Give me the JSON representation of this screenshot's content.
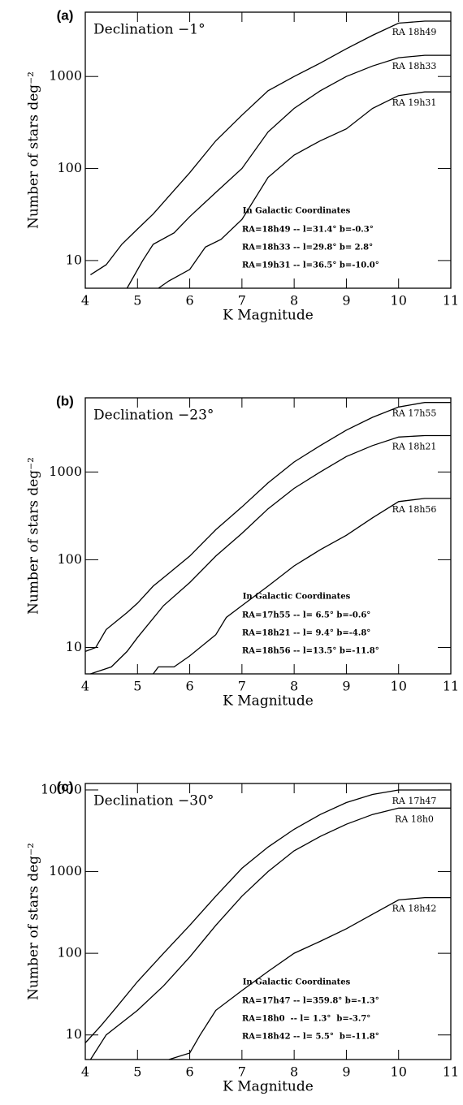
{
  "chart_data": [
    {
      "type": "line",
      "panel_label": "(a)",
      "title": "Declination −1°",
      "xlabel": "K Magnitude",
      "ylabel": "Number of stars deg⁻²",
      "xlim": [
        4,
        11
      ],
      "ylim": [
        5,
        5000
      ],
      "log_y": true,
      "xticks": [
        4,
        5,
        6,
        7,
        8,
        9,
        10,
        11
      ],
      "yticks": [
        10,
        100,
        1000
      ],
      "annotation_title": "In Galactic Coordinates",
      "annotations": [
        "RA=18h49 -- l=31.4° b=-0.3°",
        "RA=18h33 -- l=29.8° b= 2.8°",
        "RA=19h31 -- l=36.5° b=-10.0°"
      ],
      "series": [
        {
          "name": "RA 18h49",
          "color": "#000000",
          "x": [
            4.1,
            4.4,
            4.7,
            5,
            5.3,
            5.6,
            6,
            6.5,
            7,
            7.5,
            8,
            8.5,
            9,
            9.5,
            10,
            10.5,
            11
          ],
          "values": [
            7,
            9,
            15,
            22,
            32,
            50,
            90,
            200,
            380,
            700,
            1000,
            1400,
            2000,
            2800,
            3800,
            4000,
            4000
          ]
        },
        {
          "name": "RA 18h33",
          "color": "#000000",
          "x": [
            4.8,
            5.1,
            5.3,
            5.7,
            6,
            6.5,
            7,
            7.5,
            8,
            8.5,
            9,
            9.5,
            10,
            10.5,
            11
          ],
          "values": [
            5,
            10,
            15,
            20,
            30,
            55,
            100,
            250,
            450,
            700,
            1000,
            1300,
            1600,
            1700,
            1700
          ]
        },
        {
          "name": "RA 19h31",
          "color": "#000000",
          "x": [
            5.4,
            5.6,
            6,
            6.3,
            6.6,
            7,
            7.5,
            8,
            8.5,
            9,
            9.5,
            10,
            10.5,
            11
          ],
          "values": [
            5,
            6,
            8,
            14,
            17,
            28,
            80,
            140,
            200,
            270,
            450,
            620,
            680,
            680
          ]
        }
      ]
    },
    {
      "type": "line",
      "panel_label": "(b)",
      "title": "Declination −23°",
      "xlabel": "K Magnitude",
      "ylabel": "Number of stars deg⁻²",
      "xlim": [
        4,
        11
      ],
      "ylim": [
        5,
        7000
      ],
      "log_y": true,
      "xticks": [
        4,
        5,
        6,
        7,
        8,
        9,
        10,
        11
      ],
      "yticks": [
        10,
        100,
        1000
      ],
      "annotation_title": "In Galactic Coordinates",
      "annotations": [
        "RA=17h55 -- l= 6.5° b=-0.6°",
        "RA=18h21 -- l= 9.4° b=-4.8°",
        "RA=18h56 -- l=13.5° b=-11.8°"
      ],
      "series": [
        {
          "name": "RA 17h55",
          "color": "#000000",
          "x": [
            4,
            4.2,
            4.4,
            4.8,
            5,
            5.3,
            5.6,
            6,
            6.5,
            7,
            7.5,
            8,
            8.5,
            9,
            9.5,
            10,
            10.5,
            11
          ],
          "values": [
            9,
            10,
            16,
            25,
            32,
            50,
            70,
            110,
            220,
            400,
            750,
            1300,
            2000,
            3000,
            4200,
            5500,
            6200,
            6200
          ]
        },
        {
          "name": "RA 18h21",
          "color": "#000000",
          "x": [
            4.1,
            4.5,
            4.8,
            5,
            5.5,
            6,
            6.5,
            7,
            7.5,
            8,
            8.5,
            9,
            9.5,
            10,
            10.5,
            11
          ],
          "values": [
            5,
            6,
            9,
            13,
            30,
            55,
            110,
            200,
            380,
            650,
            1000,
            1500,
            2000,
            2500,
            2600,
            2600
          ]
        },
        {
          "name": "RA 18h56",
          "color": "#000000",
          "x": [
            5.3,
            5.4,
            5.7,
            6,
            6.5,
            6.7,
            7,
            7.5,
            8,
            8.5,
            9,
            9.5,
            10,
            10.5,
            11
          ],
          "values": [
            5,
            6,
            6,
            8,
            14,
            22,
            30,
            50,
            85,
            130,
            190,
            300,
            460,
            500,
            500
          ]
        }
      ]
    },
    {
      "type": "line",
      "panel_label": "(c)",
      "title": "Declination −30°",
      "xlabel": "K Magnitude",
      "ylabel": "Number of stars deg⁻²",
      "xlim": [
        4,
        11
      ],
      "ylim": [
        5,
        12000
      ],
      "log_y": true,
      "xticks": [
        4,
        5,
        6,
        7,
        8,
        9,
        10,
        11
      ],
      "yticks": [
        10,
        100,
        1000,
        10000
      ],
      "annotation_title": "In Galactic Coordinates",
      "annotations": [
        "RA=17h47 -- l=359.8° b=-1.3°",
        "RA=18h0  -- l= 1.3°  b=-3.7°",
        "RA=18h42 -- l= 5.5°  b=-11.8°"
      ],
      "series": [
        {
          "name": "RA 17h47",
          "color": "#000000",
          "x": [
            4,
            4.3,
            4.6,
            5,
            5.5,
            6,
            6.5,
            7,
            7.5,
            8,
            8.5,
            9,
            9.5,
            10,
            10.5,
            11
          ],
          "values": [
            8,
            13,
            22,
            45,
            100,
            220,
            500,
            1100,
            2000,
            3300,
            5000,
            7000,
            8800,
            10000,
            10000,
            10000
          ]
        },
        {
          "name": "RA 18h0",
          "color": "#000000",
          "x": [
            4.1,
            4.4,
            5,
            5.5,
            6,
            6.5,
            7,
            7.5,
            8,
            8.5,
            9,
            9.5,
            10,
            10.5,
            11
          ],
          "values": [
            5,
            10,
            20,
            40,
            90,
            220,
            500,
            1000,
            1800,
            2700,
            3800,
            5000,
            6000,
            6000,
            6000
          ]
        },
        {
          "name": "RA 18h42",
          "color": "#000000",
          "x": [
            5.6,
            6,
            6.2,
            6.5,
            7,
            7.5,
            8,
            8.5,
            9,
            9.5,
            10,
            10.5,
            11
          ],
          "values": [
            5,
            6,
            10,
            20,
            35,
            60,
            100,
            140,
            200,
            300,
            450,
            480,
            480
          ]
        }
      ]
    }
  ]
}
